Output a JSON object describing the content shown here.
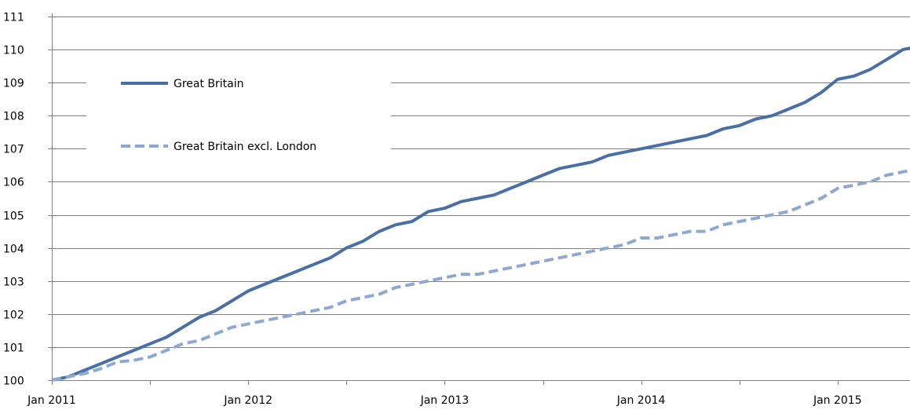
{
  "chart_data": {
    "type": "line",
    "title": "",
    "xlabel": "",
    "ylabel": "",
    "ylim": [
      100,
      111
    ],
    "yticks": [
      100,
      101,
      102,
      103,
      104,
      105,
      106,
      107,
      108,
      109,
      110,
      111
    ],
    "xticks": [
      {
        "label": "Jan 2011",
        "month": 0
      },
      {
        "label": "Jan 2012",
        "month": 12
      },
      {
        "label": "Jan 2013",
        "month": 24
      },
      {
        "label": "Jan 2014",
        "month": 36
      },
      {
        "label": "Jan 2015",
        "month": 48
      }
    ],
    "x_start": "Jan 2011",
    "x_end": "May 2015",
    "grid": true,
    "legend": "top-left",
    "series": [
      {
        "name": "Great Britain",
        "color": "#4a6fa5",
        "style": "solid",
        "values": [
          100.0,
          100.1,
          100.3,
          100.5,
          100.7,
          100.9,
          101.1,
          101.3,
          101.6,
          101.9,
          102.1,
          102.4,
          102.7,
          102.9,
          103.1,
          103.3,
          103.5,
          103.7,
          104.0,
          104.2,
          104.5,
          104.7,
          104.8,
          105.1,
          105.2,
          105.4,
          105.5,
          105.6,
          105.8,
          106.0,
          106.2,
          106.4,
          106.5,
          106.6,
          106.8,
          106.9,
          107.0,
          107.1,
          107.2,
          107.3,
          107.4,
          107.6,
          107.7,
          107.9,
          108.0,
          108.2,
          108.4,
          108.7,
          109.1,
          109.2,
          109.4,
          109.7,
          110.0,
          110.1
        ]
      },
      {
        "name": "Great Britain excl. London",
        "color": "#8fa8d0",
        "style": "dashed",
        "values": [
          100.0,
          100.1,
          100.2,
          100.35,
          100.55,
          100.6,
          100.7,
          100.9,
          101.1,
          101.2,
          101.4,
          101.6,
          101.7,
          101.8,
          101.9,
          102.0,
          102.1,
          102.2,
          102.4,
          102.5,
          102.6,
          102.8,
          102.9,
          103.0,
          103.1,
          103.2,
          103.2,
          103.3,
          103.4,
          103.5,
          103.6,
          103.7,
          103.8,
          103.9,
          104.0,
          104.1,
          104.3,
          104.3,
          104.4,
          104.5,
          104.5,
          104.7,
          104.8,
          104.9,
          105.0,
          105.1,
          105.3,
          105.5,
          105.8,
          105.9,
          106.0,
          106.2,
          106.3,
          106.4
        ]
      }
    ]
  }
}
